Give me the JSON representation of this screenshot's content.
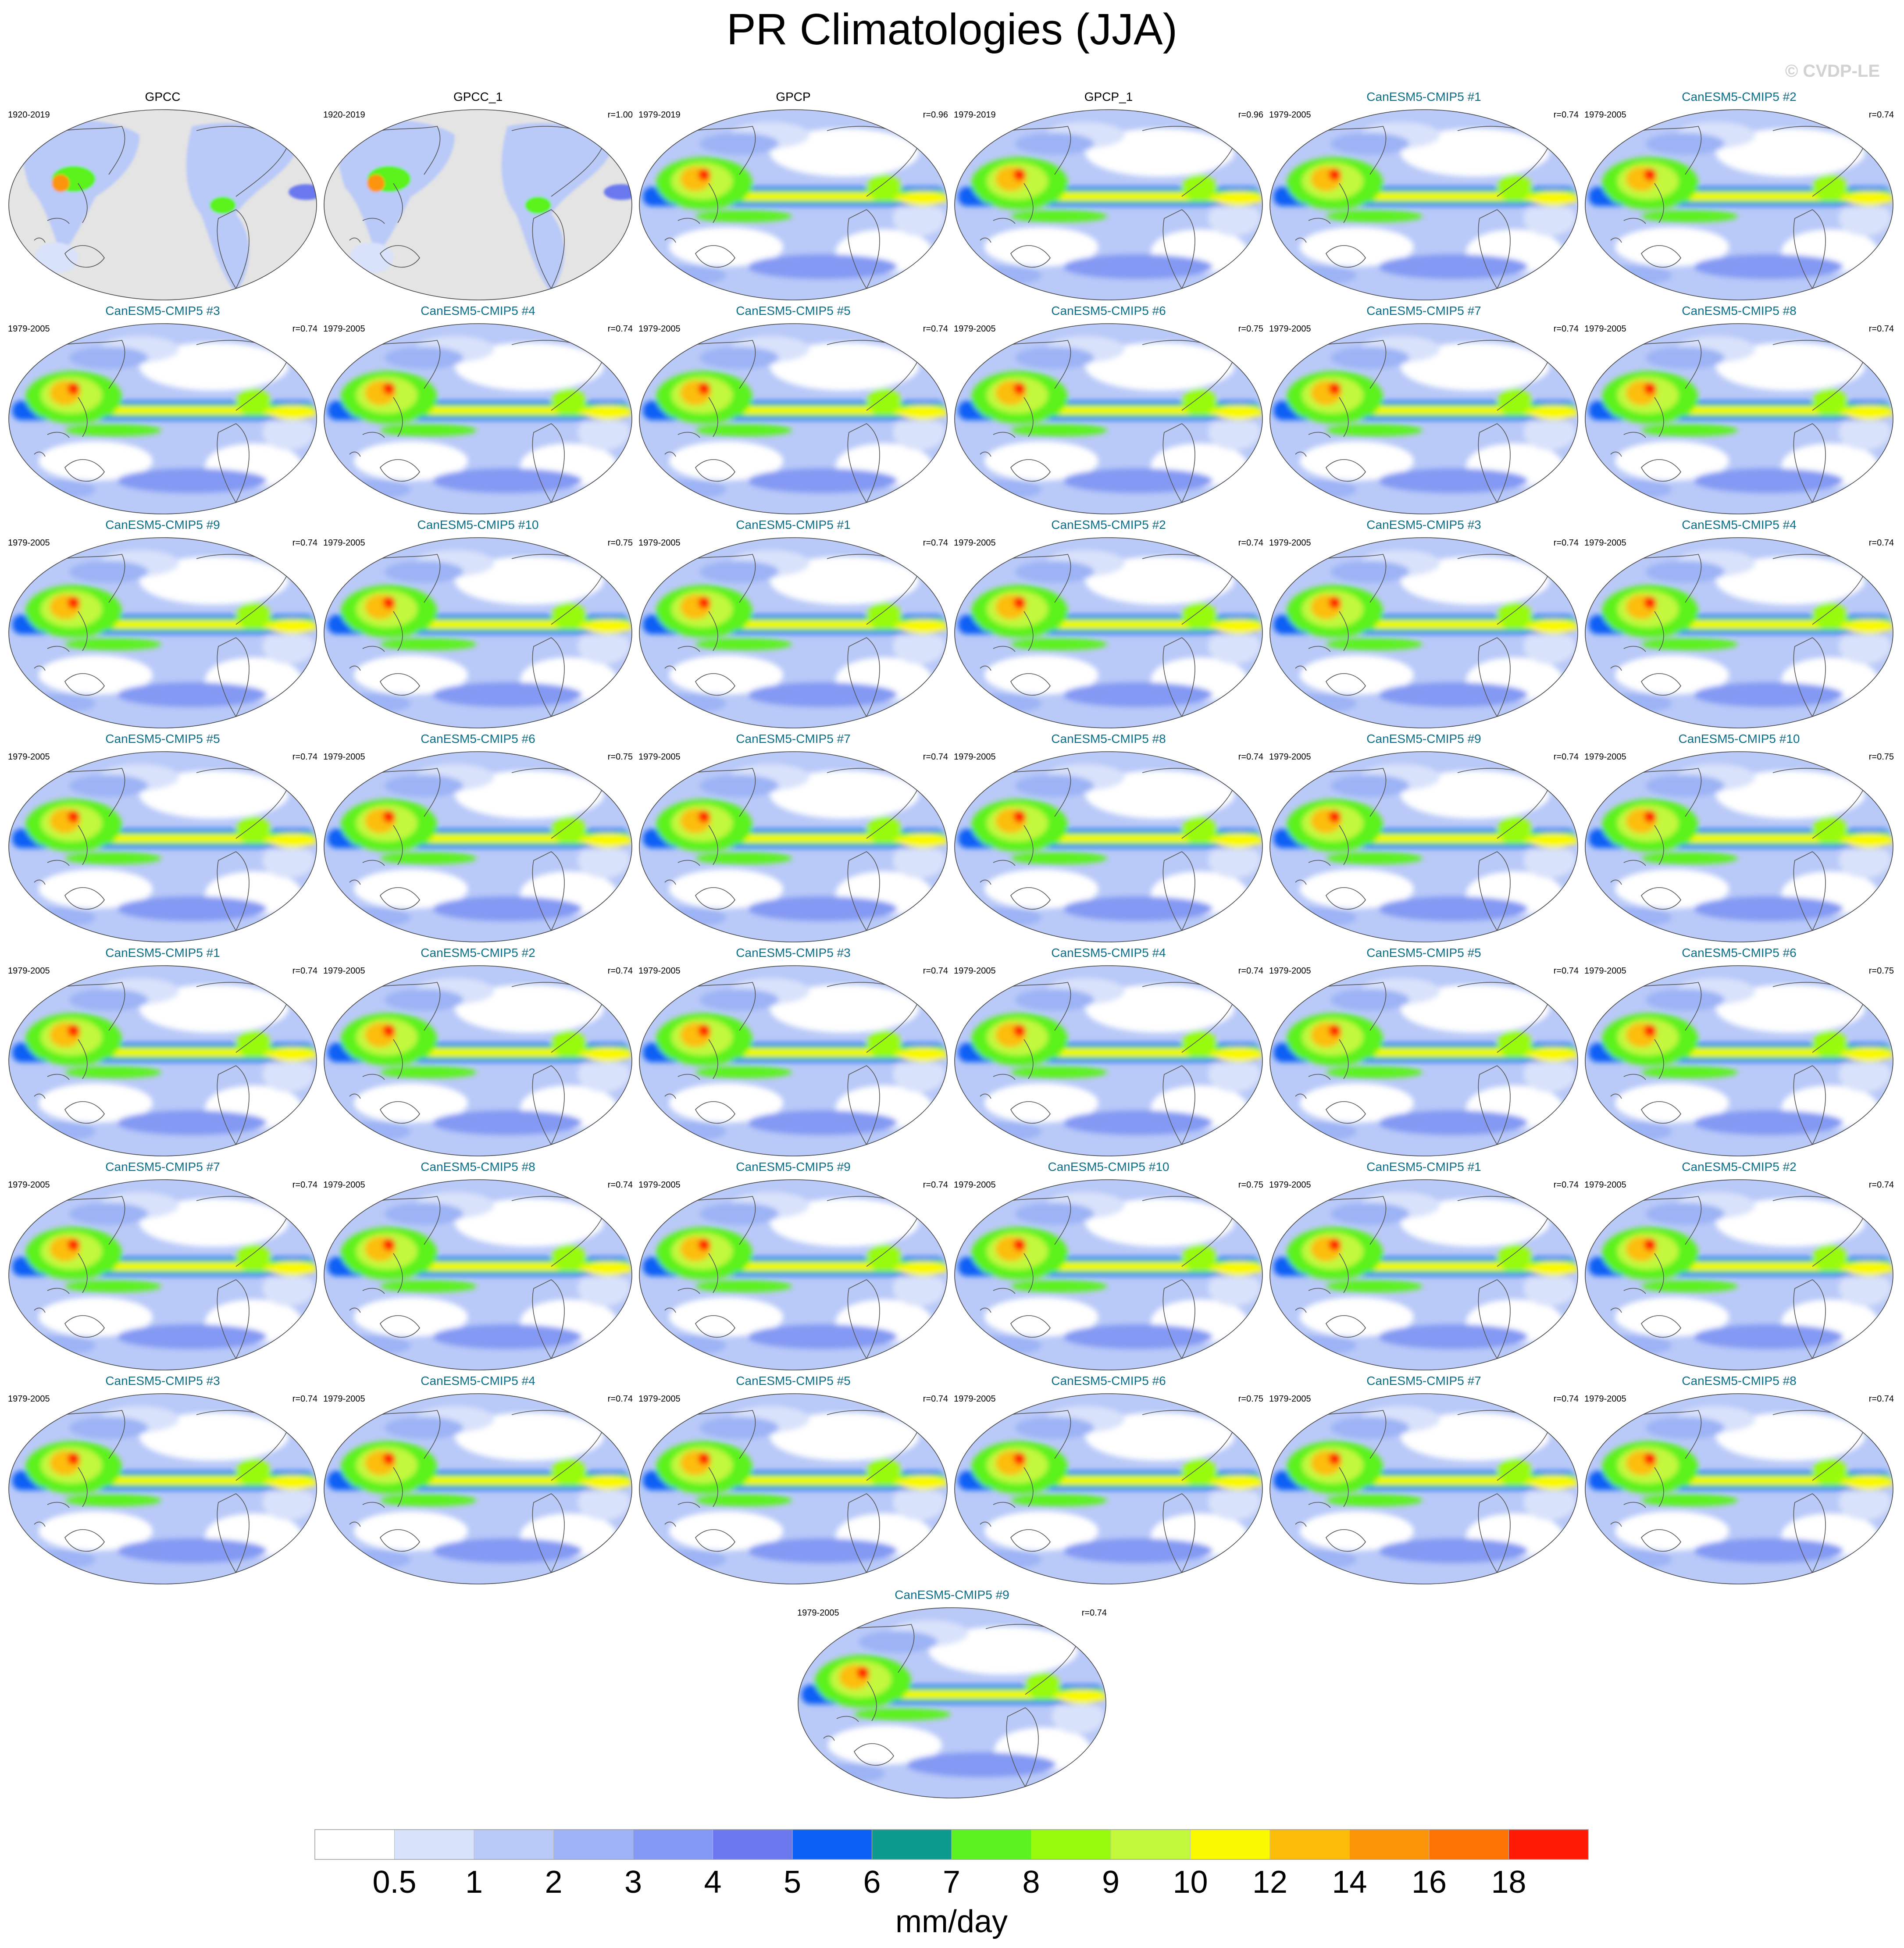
{
  "title": "PR Climatologies (JJA)",
  "copyright": "© CVDP-LE",
  "colors": {
    "obs_title": "#000000",
    "model_title": "#0b6e8a",
    "land_mask": "#e4e4e4",
    "coast": "#555555"
  },
  "chart_data": {
    "type": "heatmap",
    "units": "mm/day",
    "levels": [
      "0.5",
      "1",
      "2",
      "3",
      "4",
      "5",
      "6",
      "7",
      "8",
      "9",
      "10",
      "12",
      "14",
      "16",
      "18"
    ],
    "colors": [
      "#ffffff",
      "#d9e2fb",
      "#b9c9f8",
      "#9cb3f5",
      "#8399f3",
      "#6b78ee",
      "#0b5ff5",
      "#0c9a8e",
      "#5cf21f",
      "#98fb0d",
      "#c2f83c",
      "#fbf900",
      "#fcbd08",
      "#fc9508",
      "#fd7404",
      "#ff1a05"
    ],
    "panels": [
      {
        "title": "GPCC",
        "period": "1920-2019",
        "r": "",
        "kind": "obs",
        "land_only": true
      },
      {
        "title": "GPCC_1",
        "period": "1920-2019",
        "r": "r=1.00",
        "kind": "obs",
        "land_only": true
      },
      {
        "title": "GPCP",
        "period": "1979-2019",
        "r": "r=0.96",
        "kind": "obs",
        "land_only": false
      },
      {
        "title": "GPCP_1",
        "period": "1979-2019",
        "r": "r=0.96",
        "kind": "obs",
        "land_only": false
      },
      {
        "title": "CanESM5-CMIP5 #1",
        "period": "1979-2005",
        "r": "r=0.74",
        "kind": "model"
      },
      {
        "title": "CanESM5-CMIP5 #2",
        "period": "1979-2005",
        "r": "r=0.74",
        "kind": "model"
      },
      {
        "title": "CanESM5-CMIP5 #3",
        "period": "1979-2005",
        "r": "r=0.74",
        "kind": "model"
      },
      {
        "title": "CanESM5-CMIP5 #4",
        "period": "1979-2005",
        "r": "r=0.74",
        "kind": "model"
      },
      {
        "title": "CanESM5-CMIP5 #5",
        "period": "1979-2005",
        "r": "r=0.74",
        "kind": "model"
      },
      {
        "title": "CanESM5-CMIP5 #6",
        "period": "1979-2005",
        "r": "r=0.75",
        "kind": "model"
      },
      {
        "title": "CanESM5-CMIP5 #7",
        "period": "1979-2005",
        "r": "r=0.74",
        "kind": "model"
      },
      {
        "title": "CanESM5-CMIP5 #8",
        "period": "1979-2005",
        "r": "r=0.74",
        "kind": "model"
      },
      {
        "title": "CanESM5-CMIP5 #9",
        "period": "1979-2005",
        "r": "r=0.74",
        "kind": "model"
      },
      {
        "title": "CanESM5-CMIP5 #10",
        "period": "1979-2005",
        "r": "r=0.75",
        "kind": "model"
      },
      {
        "title": "CanESM5-CMIP5 #1",
        "period": "1979-2005",
        "r": "r=0.74",
        "kind": "model"
      },
      {
        "title": "CanESM5-CMIP5 #2",
        "period": "1979-2005",
        "r": "r=0.74",
        "kind": "model"
      },
      {
        "title": "CanESM5-CMIP5 #3",
        "period": "1979-2005",
        "r": "r=0.74",
        "kind": "model"
      },
      {
        "title": "CanESM5-CMIP5 #4",
        "period": "1979-2005",
        "r": "r=0.74",
        "kind": "model"
      },
      {
        "title": "CanESM5-CMIP5 #5",
        "period": "1979-2005",
        "r": "r=0.74",
        "kind": "model"
      },
      {
        "title": "CanESM5-CMIP5 #6",
        "period": "1979-2005",
        "r": "r=0.75",
        "kind": "model"
      },
      {
        "title": "CanESM5-CMIP5 #7",
        "period": "1979-2005",
        "r": "r=0.74",
        "kind": "model"
      },
      {
        "title": "CanESM5-CMIP5 #8",
        "period": "1979-2005",
        "r": "r=0.74",
        "kind": "model"
      },
      {
        "title": "CanESM5-CMIP5 #9",
        "period": "1979-2005",
        "r": "r=0.74",
        "kind": "model"
      },
      {
        "title": "CanESM5-CMIP5 #10",
        "period": "1979-2005",
        "r": "r=0.75",
        "kind": "model"
      },
      {
        "title": "CanESM5-CMIP5 #1",
        "period": "1979-2005",
        "r": "r=0.74",
        "kind": "model"
      },
      {
        "title": "CanESM5-CMIP5 #2",
        "period": "1979-2005",
        "r": "r=0.74",
        "kind": "model"
      },
      {
        "title": "CanESM5-CMIP5 #3",
        "period": "1979-2005",
        "r": "r=0.74",
        "kind": "model"
      },
      {
        "title": "CanESM5-CMIP5 #4",
        "period": "1979-2005",
        "r": "r=0.74",
        "kind": "model"
      },
      {
        "title": "CanESM5-CMIP5 #5",
        "period": "1979-2005",
        "r": "r=0.74",
        "kind": "model"
      },
      {
        "title": "CanESM5-CMIP5 #6",
        "period": "1979-2005",
        "r": "r=0.75",
        "kind": "model"
      },
      {
        "title": "CanESM5-CMIP5 #7",
        "period": "1979-2005",
        "r": "r=0.74",
        "kind": "model"
      },
      {
        "title": "CanESM5-CMIP5 #8",
        "period": "1979-2005",
        "r": "r=0.74",
        "kind": "model"
      },
      {
        "title": "CanESM5-CMIP5 #9",
        "period": "1979-2005",
        "r": "r=0.74",
        "kind": "model"
      },
      {
        "title": "CanESM5-CMIP5 #10",
        "period": "1979-2005",
        "r": "r=0.75",
        "kind": "model"
      },
      {
        "title": "CanESM5-CMIP5 #1",
        "period": "1979-2005",
        "r": "r=0.74",
        "kind": "model"
      },
      {
        "title": "CanESM5-CMIP5 #2",
        "period": "1979-2005",
        "r": "r=0.74",
        "kind": "model"
      },
      {
        "title": "CanESM5-CMIP5 #3",
        "period": "1979-2005",
        "r": "r=0.74",
        "kind": "model"
      },
      {
        "title": "CanESM5-CMIP5 #4",
        "period": "1979-2005",
        "r": "r=0.74",
        "kind": "model"
      },
      {
        "title": "CanESM5-CMIP5 #5",
        "period": "1979-2005",
        "r": "r=0.74",
        "kind": "model"
      },
      {
        "title": "CanESM5-CMIP5 #6",
        "period": "1979-2005",
        "r": "r=0.75",
        "kind": "model"
      },
      {
        "title": "CanESM5-CMIP5 #7",
        "period": "1979-2005",
        "r": "r=0.74",
        "kind": "model"
      },
      {
        "title": "CanESM5-CMIP5 #8",
        "period": "1979-2005",
        "r": "r=0.74",
        "kind": "model"
      },
      {
        "title": "CanESM5-CMIP5 #9",
        "period": "1979-2005",
        "r": "r=0.74",
        "kind": "model"
      }
    ]
  }
}
